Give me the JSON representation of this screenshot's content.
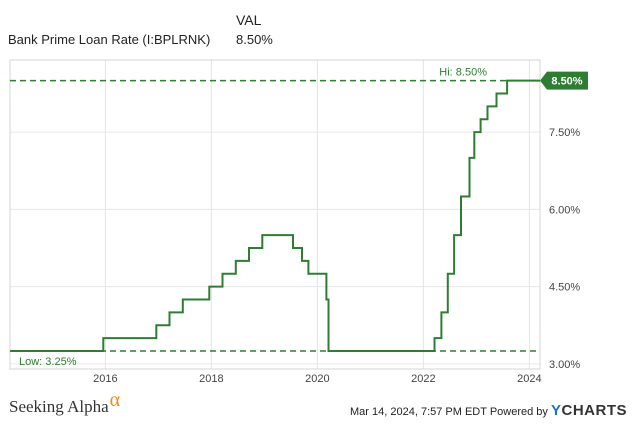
{
  "legend": {
    "header": "VAL",
    "series_name": "Bank Prime Loan Rate (I:BPLRNK)",
    "series_value": "8.50%"
  },
  "footer": {
    "brand": "Seeking Alpha",
    "brand_symbol": "α",
    "timestamp": "Mar 14, 2024, 7:57 PM EDT Powered by",
    "ycharts_y": "Y",
    "ycharts_rest": "CHARTS"
  },
  "chart_data": {
    "type": "line",
    "title": "",
    "xlabel": "",
    "ylabel": "",
    "xlim": [
      2014.2,
      2024.2
    ],
    "ylim": [
      2.9,
      8.9
    ],
    "x_ticks": [
      "2016",
      "2018",
      "2020",
      "2022",
      "2024"
    ],
    "y_ticks": [
      "3.00%",
      "4.50%",
      "6.00%",
      "7.50%"
    ],
    "grid": true,
    "series": [
      {
        "name": "Bank Prime Loan Rate (I:BPLRNK)",
        "color": "#2e7d32",
        "points": [
          [
            2014.2,
            3.25
          ],
          [
            2015.96,
            3.25
          ],
          [
            2015.96,
            3.5
          ],
          [
            2016.96,
            3.5
          ],
          [
            2016.96,
            3.75
          ],
          [
            2017.21,
            3.75
          ],
          [
            2017.21,
            4.0
          ],
          [
            2017.46,
            4.0
          ],
          [
            2017.46,
            4.25
          ],
          [
            2017.96,
            4.25
          ],
          [
            2017.96,
            4.5
          ],
          [
            2018.21,
            4.5
          ],
          [
            2018.21,
            4.75
          ],
          [
            2018.46,
            4.75
          ],
          [
            2018.46,
            5.0
          ],
          [
            2018.71,
            5.0
          ],
          [
            2018.71,
            5.25
          ],
          [
            2018.96,
            5.25
          ],
          [
            2018.96,
            5.5
          ],
          [
            2019.54,
            5.5
          ],
          [
            2019.54,
            5.25
          ],
          [
            2019.71,
            5.25
          ],
          [
            2019.71,
            5.0
          ],
          [
            2019.83,
            5.0
          ],
          [
            2019.83,
            4.75
          ],
          [
            2020.17,
            4.75
          ],
          [
            2020.17,
            4.25
          ],
          [
            2020.21,
            4.25
          ],
          [
            2020.21,
            3.25
          ],
          [
            2022.21,
            3.25
          ],
          [
            2022.21,
            3.5
          ],
          [
            2022.34,
            3.5
          ],
          [
            2022.34,
            4.0
          ],
          [
            2022.46,
            4.0
          ],
          [
            2022.46,
            4.75
          ],
          [
            2022.58,
            4.75
          ],
          [
            2022.58,
            5.5
          ],
          [
            2022.71,
            5.5
          ],
          [
            2022.71,
            6.25
          ],
          [
            2022.87,
            6.25
          ],
          [
            2022.87,
            7.0
          ],
          [
            2022.96,
            7.0
          ],
          [
            2022.96,
            7.5
          ],
          [
            2023.08,
            7.5
          ],
          [
            2023.08,
            7.75
          ],
          [
            2023.21,
            7.75
          ],
          [
            2023.21,
            8.0
          ],
          [
            2023.38,
            8.0
          ],
          [
            2023.38,
            8.25
          ],
          [
            2023.58,
            8.25
          ],
          [
            2023.58,
            8.5
          ],
          [
            2024.2,
            8.5
          ]
        ]
      }
    ],
    "reference_lines": [
      {
        "label": "Hi: 8.50%",
        "value": 8.5
      },
      {
        "label": "Low: 3.25%",
        "value": 3.25
      }
    ],
    "current_value_label": "8.50%"
  }
}
